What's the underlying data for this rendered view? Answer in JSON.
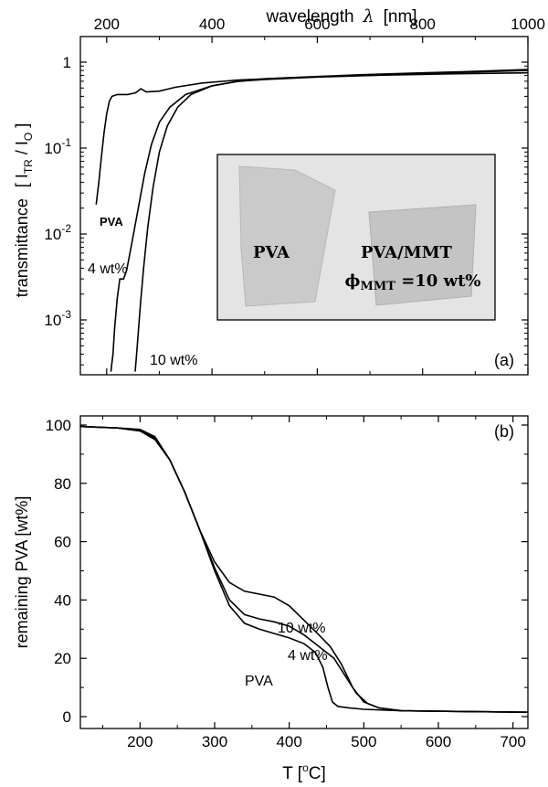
{
  "chart_data": [
    {
      "type": "line",
      "panel_label": "(a)",
      "top_axis_label": "wavelength",
      "top_axis_symbol": "λ",
      "top_axis_unit": "[nm]",
      "ylabel_word": "transmittance",
      "ylabel_ratio": {
        "open": "[ I",
        "num_sub": "TR",
        "slash": " / I",
        "den_sub": "O",
        "close": " ]"
      },
      "x_scale": "linear",
      "y_scale": "log",
      "xlim": [
        150,
        1000
      ],
      "ylim": [
        0.00025,
        1
      ],
      "x_ticks": [
        200,
        400,
        600,
        800,
        1000
      ],
      "y_ticks": [
        {
          "value": 1,
          "base": "1",
          "exp": ""
        },
        {
          "value": 0.1,
          "base": "10",
          "exp": "-1"
        },
        {
          "value": 0.01,
          "base": "10",
          "exp": "-2"
        },
        {
          "value": 0.001,
          "base": "10",
          "exp": "-3"
        }
      ],
      "series": [
        {
          "name": "PVA",
          "points": [
            [
              180,
              0.022
            ],
            [
              185,
              0.04
            ],
            [
              190,
              0.08
            ],
            [
              195,
              0.15
            ],
            [
              200,
              0.25
            ],
            [
              205,
              0.35
            ],
            [
              210,
              0.4
            ],
            [
              220,
              0.42
            ],
            [
              240,
              0.42
            ],
            [
              255,
              0.44
            ],
            [
              265,
              0.49
            ],
            [
              275,
              0.45
            ],
            [
              300,
              0.46
            ],
            [
              330,
              0.51
            ],
            [
              380,
              0.57
            ],
            [
              450,
              0.62
            ],
            [
              550,
              0.66
            ],
            [
              650,
              0.69
            ],
            [
              750,
              0.71
            ],
            [
              850,
              0.73
            ],
            [
              1000,
              0.75
            ]
          ]
        },
        {
          "name": "4 wt%",
          "points": [
            [
              208,
              0.00025
            ],
            [
              212,
              0.0004
            ],
            [
              215,
              0.0008
            ],
            [
              220,
              0.0018
            ],
            [
              225,
              0.003
            ],
            [
              232,
              0.003
            ],
            [
              238,
              0.0038
            ],
            [
              248,
              0.008
            ],
            [
              260,
              0.02
            ],
            [
              272,
              0.05
            ],
            [
              285,
              0.11
            ],
            [
              300,
              0.2
            ],
            [
              320,
              0.3
            ],
            [
              350,
              0.42
            ],
            [
              400,
              0.53
            ],
            [
              450,
              0.6
            ],
            [
              500,
              0.63
            ],
            [
              600,
              0.67
            ],
            [
              700,
              0.7
            ],
            [
              800,
              0.74
            ],
            [
              900,
              0.77
            ],
            [
              1000,
              0.8
            ]
          ]
        },
        {
          "name": "10 wt%",
          "points": [
            [
              254,
              0.00025
            ],
            [
              258,
              0.0005
            ],
            [
              264,
              0.0015
            ],
            [
              270,
              0.004
            ],
            [
              278,
              0.012
            ],
            [
              288,
              0.035
            ],
            [
              300,
              0.09
            ],
            [
              315,
              0.18
            ],
            [
              335,
              0.3
            ],
            [
              360,
              0.42
            ],
            [
              400,
              0.53
            ],
            [
              450,
              0.6
            ],
            [
              500,
              0.64
            ],
            [
              600,
              0.68
            ],
            [
              700,
              0.72
            ],
            [
              800,
              0.75
            ],
            [
              900,
              0.78
            ],
            [
              1000,
              0.82
            ]
          ]
        }
      ],
      "curve_labels": [
        "PVA",
        "4 wt%",
        "10 wt%"
      ],
      "inset": {
        "left_text": "PVA",
        "right_text": "PVA/MMT",
        "phi_symbol": "ϕ",
        "phi_sub": "MMT",
        "phi_value": " =10 wt%"
      }
    },
    {
      "type": "line",
      "panel_label": "(b)",
      "xlabel_prefix": "T [",
      "xlabel_sup": "o",
      "xlabel_suffix": "C]",
      "ylabel": "remaining PVA  [wt%]",
      "x_scale": "linear",
      "y_scale": "linear",
      "xlim": [
        120,
        720
      ],
      "ylim": [
        -5,
        104
      ],
      "x_ticks": [
        "200",
        "300",
        "400",
        "500",
        "600",
        "700"
      ],
      "y_ticks": [
        "0",
        "20",
        "40",
        "60",
        "80",
        "100"
      ],
      "series": [
        {
          "name": "PVA",
          "points": [
            [
              120,
              99.5
            ],
            [
              170,
              99
            ],
            [
              200,
              98
            ],
            [
              220,
              95.5
            ],
            [
              240,
              88
            ],
            [
              260,
              77
            ],
            [
              280,
              64
            ],
            [
              300,
              50
            ],
            [
              320,
              38
            ],
            [
              340,
              32
            ],
            [
              360,
              30
            ],
            [
              380,
              28.5
            ],
            [
              400,
              27
            ],
            [
              420,
              25
            ],
            [
              435,
              22
            ],
            [
              445,
              17
            ],
            [
              452,
              10
            ],
            [
              458,
              5
            ],
            [
              465,
              3.5
            ],
            [
              480,
              3
            ],
            [
              500,
              2.5
            ],
            [
              550,
              2
            ],
            [
              720,
              1.5
            ]
          ]
        },
        {
          "name": "4 wt%",
          "points": [
            [
              120,
              99.5
            ],
            [
              170,
              99
            ],
            [
              200,
              98
            ],
            [
              220,
              95
            ],
            [
              240,
              88
            ],
            [
              260,
              77
            ],
            [
              280,
              64
            ],
            [
              300,
              51
            ],
            [
              320,
              40
            ],
            [
              340,
              35
            ],
            [
              360,
              33.5
            ],
            [
              380,
              32.5
            ],
            [
              400,
              31
            ],
            [
              420,
              28
            ],
            [
              440,
              24
            ],
            [
              460,
              20
            ],
            [
              475,
              14
            ],
            [
              490,
              8
            ],
            [
              505,
              4.5
            ],
            [
              520,
              3
            ],
            [
              550,
              2
            ],
            [
              720,
              1.5
            ]
          ]
        },
        {
          "name": "10 wt%",
          "points": [
            [
              120,
              99.5
            ],
            [
              170,
              99
            ],
            [
              200,
              98.5
            ],
            [
              220,
              96
            ],
            [
              240,
              88
            ],
            [
              260,
              77
            ],
            [
              280,
              64
            ],
            [
              300,
              53
            ],
            [
              320,
              46
            ],
            [
              340,
              43
            ],
            [
              360,
              42
            ],
            [
              380,
              41
            ],
            [
              400,
              38
            ],
            [
              420,
              33
            ],
            [
              440,
              28
            ],
            [
              455,
              24
            ],
            [
              470,
              18
            ],
            [
              485,
              10
            ],
            [
              500,
              5
            ],
            [
              520,
              3
            ],
            [
              550,
              2
            ],
            [
              720,
              1.5
            ]
          ]
        }
      ],
      "curve_labels": [
        "10 wt%",
        "4 wt%",
        "PVA"
      ]
    }
  ]
}
